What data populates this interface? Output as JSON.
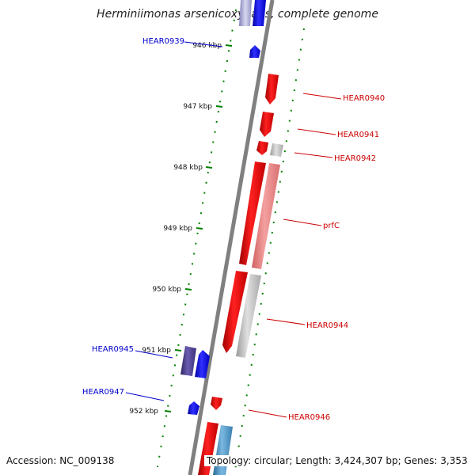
{
  "title": "Herminiimonas arsenicoxydans, complete genome",
  "footer": {
    "accession": "Accession: NC_009138",
    "topology": "Topology: circular; Length: 3,424,307 bp; Genes: 3,353"
  },
  "colors": {
    "forward_strand": "#0000ee",
    "forward_strand_label": "#0000cc",
    "reverse_strand": "#ee0000",
    "reverse_strand_label": "#cc0000",
    "reverse_other": "#ee8080",
    "neutral": "#c0c0c0",
    "forward_other_purple": "#4a3f8a",
    "forward_other_teal": "#5a9ac8",
    "tick": "#008000",
    "backbone": "#808080"
  },
  "scale_labels": [
    "946 kbp",
    "947 kbp",
    "948 kbp",
    "949 kbp",
    "950 kbp",
    "951 kbp",
    "952 kbp"
  ],
  "gene_labels": [
    {
      "text": "HEAR0939",
      "strand": "forward"
    },
    {
      "text": "HEAR0940",
      "strand": "reverse"
    },
    {
      "text": "HEAR0941",
      "strand": "reverse"
    },
    {
      "text": "HEAR0942",
      "strand": "reverse"
    },
    {
      "text": "prfC",
      "strand": "reverse"
    },
    {
      "text": "HEAR0944",
      "strand": "reverse"
    },
    {
      "text": "HEAR0945",
      "strand": "forward"
    },
    {
      "text": "HEAR0947",
      "strand": "forward"
    },
    {
      "text": "HEAR0946",
      "strand": "reverse"
    }
  ]
}
